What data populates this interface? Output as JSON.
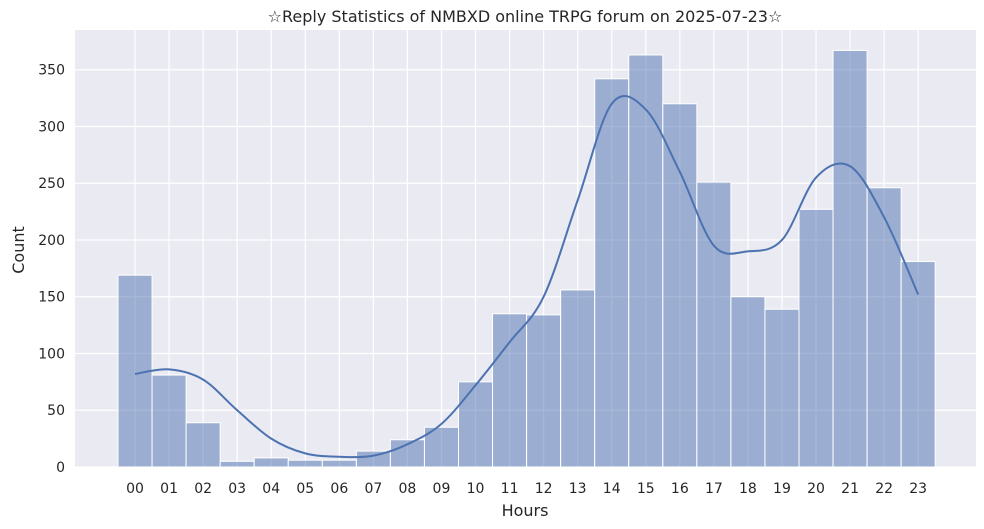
{
  "chart_data": {
    "type": "bar",
    "title": "☆Reply Statistics of NMBXD online TRPG forum on 2025-07-23☆",
    "xlabel": "Hours",
    "ylabel": "Count",
    "categories": [
      "00",
      "01",
      "02",
      "03",
      "04",
      "05",
      "06",
      "07",
      "08",
      "09",
      "10",
      "11",
      "12",
      "13",
      "14",
      "15",
      "16",
      "17",
      "18",
      "19",
      "20",
      "21",
      "22",
      "23"
    ],
    "values": [
      169,
      81,
      39,
      5,
      8,
      6,
      6,
      14,
      24,
      35,
      75,
      135,
      134,
      156,
      342,
      363,
      320,
      251,
      150,
      139,
      227,
      367,
      246,
      181
    ],
    "kde": [
      82,
      86,
      77,
      50,
      25,
      12,
      9,
      10,
      20,
      38,
      72,
      110,
      150,
      235,
      320,
      315,
      260,
      195,
      190,
      200,
      255,
      265,
      220,
      152
    ],
    "ylim": [
      0,
      385
    ],
    "yticks": [
      0,
      50,
      100,
      150,
      200,
      250,
      300,
      350
    ],
    "grid": true,
    "colors": {
      "background": "#eaeaf2",
      "grid": "#ffffff",
      "bar": "#4c72b0",
      "bar_opacity": 0.5,
      "line": "#4c72b0"
    }
  }
}
